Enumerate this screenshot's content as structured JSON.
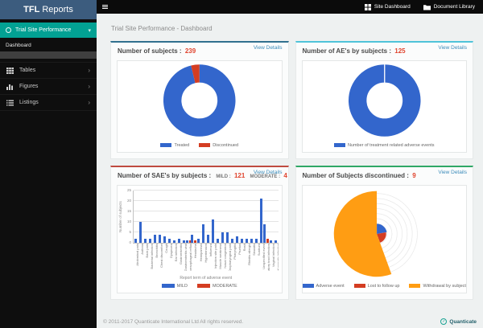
{
  "app": {
    "brand_bold": "TFL",
    "brand_rest": "Reports",
    "topbar": {
      "site_dashboard": "Site Dashboard",
      "document_library": "Document Library"
    }
  },
  "sidebar": {
    "module": "Trial Site Performance",
    "section_label": "Dashboard",
    "items": [
      {
        "label": "Tables",
        "icon": "table-grid-icon"
      },
      {
        "label": "Figures",
        "icon": "bar-chart-icon"
      },
      {
        "label": "Listings",
        "icon": "list-icon"
      }
    ]
  },
  "breadcrumb": "Trial Site Performance - Dashboard",
  "view_details_label": "View Details",
  "footer": {
    "copyright": "© 2011-2017 Quanticate International Ltd All rights reserved.",
    "logo_text": "Quanticate"
  },
  "colors": {
    "brand_blue": "#3c5c7e",
    "teal": "#02a193",
    "value_red": "#e0442e",
    "chart_blue": "#3366cc",
    "chart_red": "#d43d22",
    "chart_orange": "#ff9d13",
    "panel_accents": [
      "#31708f",
      "#4fc3d9",
      "#bf4b40",
      "#2fa866"
    ]
  },
  "chart_data": [
    {
      "type": "pie",
      "donut": true,
      "title": "Number of subjects :",
      "total": "239",
      "legend_position": "bottom",
      "slices": [
        {
          "label": "Treated",
          "value": 230,
          "color": "#3366cc"
        },
        {
          "label": "Discontinued",
          "value": 9,
          "color": "#d43d22"
        }
      ]
    },
    {
      "type": "pie",
      "donut": true,
      "title": "Number of AE's by subjects :",
      "total": "125",
      "legend_position": "bottom",
      "slices": [
        {
          "label": "Number of treatment related adverse events",
          "value": 125,
          "color": "#3366cc"
        }
      ]
    },
    {
      "type": "bar",
      "title": "Number of SAE's by subjects :",
      "stats": [
        {
          "label": "MILD :",
          "value": "121"
        },
        {
          "label": "MODERATE :",
          "value": "4"
        }
      ],
      "xlabel": "Report term of adverse event",
      "ylabel": "Number of subjects",
      "ylim": [
        0,
        25
      ],
      "yticks": [
        0,
        5,
        10,
        15,
        20,
        25
      ],
      "grid": true,
      "legend_position": "bottom",
      "categories": [
        "Abdominal pain",
        "Asthma",
        "Back pain",
        "Bacterial infection",
        "Bronchitis",
        "Chest discomfort",
        "Cough",
        "Dyspnoea",
        "Ear infection",
        "Gastroenteritis",
        "Gastroenteritis viral",
        "Gastrooesophageal reflux",
        "Headache",
        "Hemiparesis",
        "Hypertension",
        "Influenza",
        "Injection site pain",
        "Muscle weakness",
        "Nasal congestion",
        "Oropharyngeal pain",
        "Pharyngitis",
        "Pruritus",
        "Rash",
        "Rhinitis allergic",
        "Sinusitis",
        "Sunburn",
        "Unspecified event",
        "Upper respiratory tract infection",
        "Vaginal infection",
        "Vulvovaginal mycotic infection"
      ],
      "series": [
        {
          "name": "MILD",
          "color": "#3366cc",
          "values": [
            2,
            10,
            2,
            2,
            4,
            4,
            3,
            2,
            1,
            2,
            1,
            1,
            4,
            2,
            9,
            4,
            11,
            2,
            5,
            5,
            2,
            3,
            2,
            2,
            2,
            2,
            21,
            9,
            1,
            1
          ]
        },
        {
          "name": "MODERATE",
          "color": "#d43d22",
          "values": [
            0,
            0,
            0,
            0,
            0,
            0,
            0,
            0,
            0,
            0,
            0,
            1,
            1,
            0,
            0,
            0,
            0,
            0,
            0,
            0,
            0,
            0,
            0,
            0,
            0,
            0,
            0,
            2,
            0,
            0
          ]
        }
      ]
    },
    {
      "type": "polar-rose",
      "title": "Number of Subjects discontinued :",
      "total": "9",
      "grid": "concentric-circles",
      "legend_position": "bottom",
      "slices": [
        {
          "label": "Adverse event",
          "value": 2,
          "color": "#3366cc",
          "radius_hint": 13
        },
        {
          "label": "Lost to follow up",
          "value": 2,
          "color": "#d43d22",
          "radius_hint": 12
        },
        {
          "label": "Withdrawal by subject",
          "value": 5,
          "color": "#ff9d13",
          "radius_hint": 55
        }
      ]
    }
  ]
}
